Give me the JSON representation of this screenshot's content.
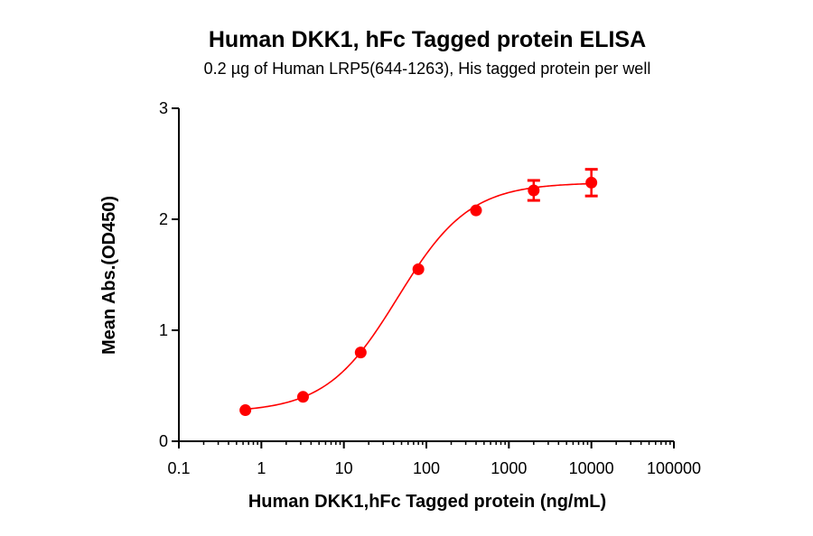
{
  "chart_data": {
    "type": "scatter",
    "title": "Human DKK1, hFc Tagged protein  ELISA",
    "subtitle": "0.2 µg of Human LRP5(644-1263), His tagged protein per well",
    "xlabel": "Human DKK1,hFc Tagged protein (ng/mL)",
    "ylabel": "Mean Abs.(OD450)",
    "x_scale": "log",
    "xlim": [
      0.1,
      100000
    ],
    "ylim": [
      0,
      3
    ],
    "x_ticks": [
      {
        "value": 0.1,
        "label": "0.1"
      },
      {
        "value": 1,
        "label": "1"
      },
      {
        "value": 10,
        "label": "10"
      },
      {
        "value": 100,
        "label": "100"
      },
      {
        "value": 1000,
        "label": "1000"
      },
      {
        "value": 10000,
        "label": "10000"
      },
      {
        "value": 100000,
        "label": "100000"
      }
    ],
    "y_ticks": [
      {
        "value": 0,
        "label": "0"
      },
      {
        "value": 1,
        "label": "1"
      },
      {
        "value": 2,
        "label": "2"
      },
      {
        "value": 3,
        "label": "3"
      }
    ],
    "grid": false,
    "color": "#ff0000",
    "series": [
      {
        "points": [
          {
            "x": 0.64,
            "y": 0.28,
            "err": 0.0
          },
          {
            "x": 3.2,
            "y": 0.4,
            "err": 0.0
          },
          {
            "x": 16,
            "y": 0.8,
            "err": 0.0
          },
          {
            "x": 80,
            "y": 1.55,
            "err": 0.0
          },
          {
            "x": 400,
            "y": 2.08,
            "err": 0.0
          },
          {
            "x": 2000,
            "y": 2.26,
            "err": 0.09
          },
          {
            "x": 10000,
            "y": 2.33,
            "err": 0.12
          }
        ],
        "fit": {
          "bottom": 0.26,
          "top": 2.33,
          "ec50": 45,
          "hill": 1.0
        }
      }
    ]
  }
}
